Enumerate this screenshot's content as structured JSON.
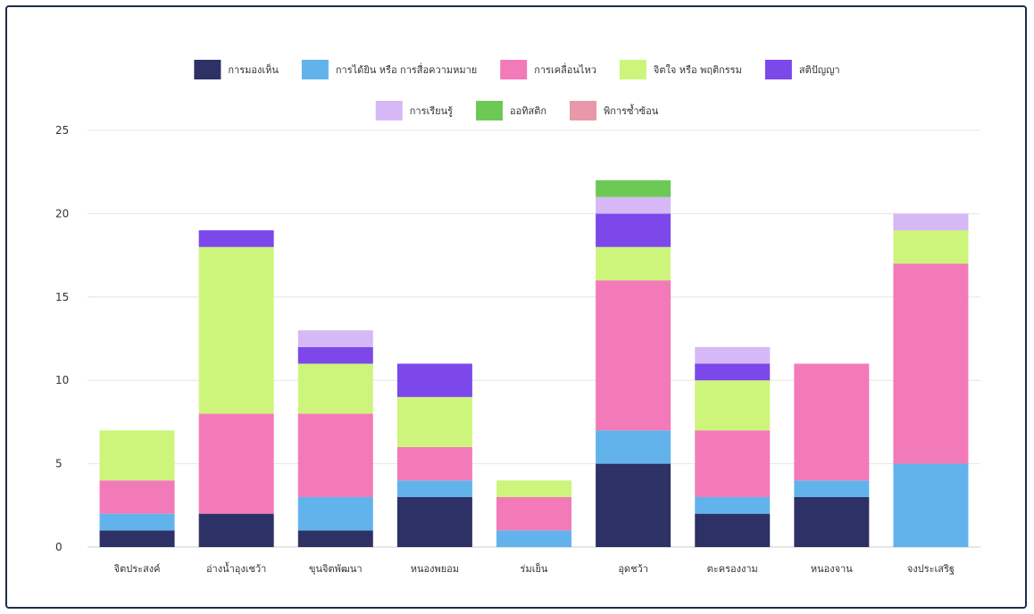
{
  "chart_data": {
    "type": "bar",
    "stacked": true,
    "title": "",
    "xlabel": "",
    "ylabel": "",
    "ylim": [
      0,
      25
    ],
    "yticks": [
      0,
      5,
      10,
      15,
      20,
      25
    ],
    "grid": true,
    "legend_position": "top",
    "categories": [
      "จิตประสงค์",
      "อ่างน้ำอุงเชว้า",
      "ขุนจิตพัฒนา",
      "หนองพยอม",
      "ร่มเย็น",
      "อุดชว้า",
      "ตะครองงาม",
      "หนองจาน",
      "จงประเสริฐ"
    ],
    "series": [
      {
        "name": "การมองเห็น",
        "color": "#2e3165",
        "values": [
          1,
          2,
          1,
          3,
          0,
          5,
          2,
          3,
          0
        ]
      },
      {
        "name": "การได้ยิน หรือ การสื่อความหมาย",
        "color": "#62b3ec",
        "values": [
          1,
          0,
          2,
          1,
          1,
          2,
          1,
          1,
          5
        ]
      },
      {
        "name": "การเคลื่อนไหว",
        "color": "#f37ab8",
        "values": [
          2,
          6,
          5,
          2,
          2,
          9,
          4,
          7,
          12
        ]
      },
      {
        "name": "จิตใจ หรือ พฤติกรรม",
        "color": "#cdf57c",
        "values": [
          3,
          10,
          3,
          3,
          1,
          2,
          3,
          0,
          2
        ]
      },
      {
        "name": "สติปัญญา",
        "color": "#7c48ea",
        "values": [
          0,
          1,
          1,
          2,
          0,
          2,
          1,
          0,
          0
        ]
      },
      {
        "name": "การเรียนรู้",
        "color": "#d7b8f6",
        "values": [
          0,
          0,
          1,
          0,
          0,
          1,
          1,
          0,
          1
        ]
      },
      {
        "name": "ออทิสติก",
        "color": "#6cc955",
        "values": [
          0,
          0,
          0,
          0,
          0,
          1,
          0,
          0,
          0
        ]
      },
      {
        "name": "พิการซ้ำซ้อน",
        "color": "#e898a8",
        "values": [
          0,
          0,
          0,
          0,
          0,
          0,
          0,
          0,
          0
        ]
      }
    ]
  }
}
